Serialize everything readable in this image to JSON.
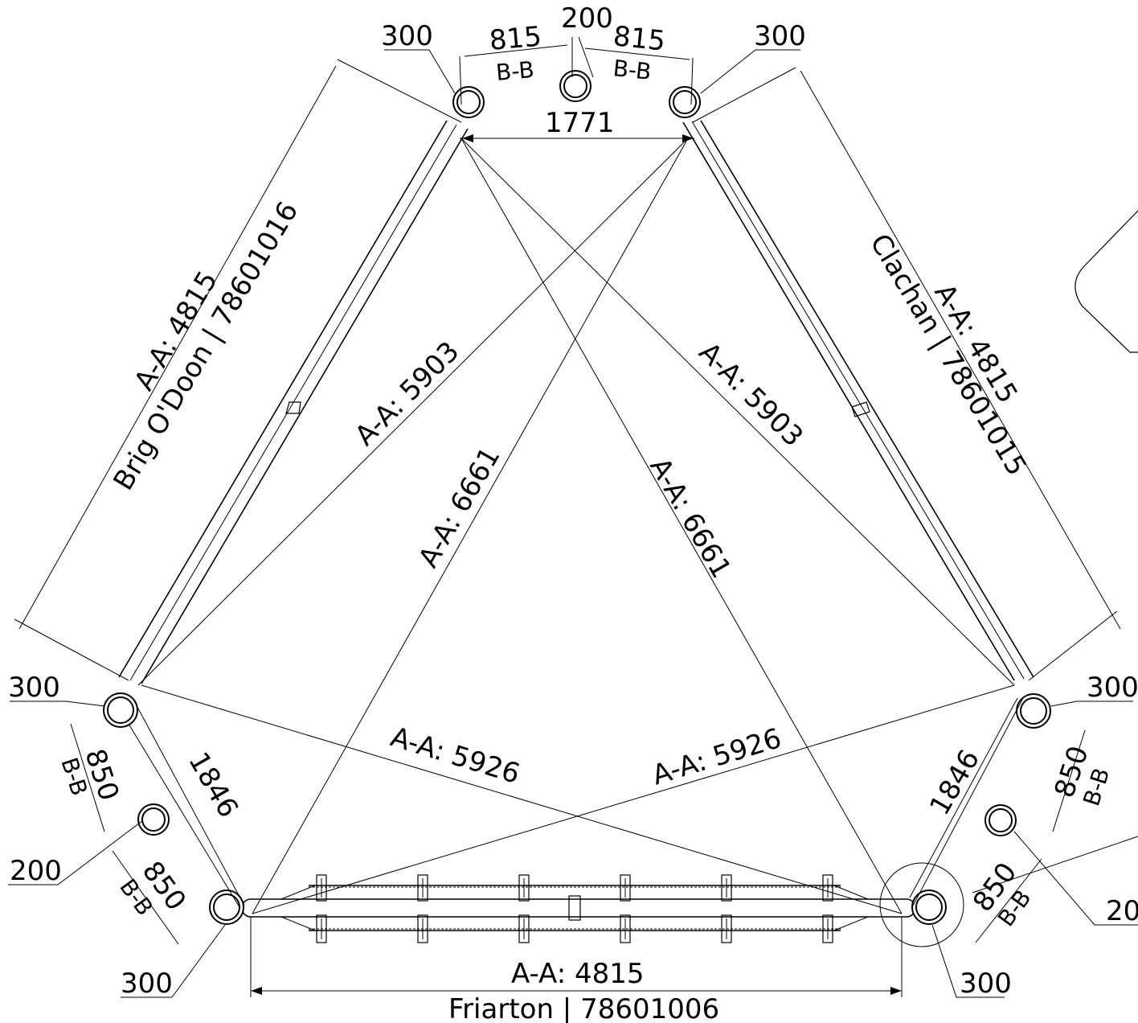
{
  "members": {
    "left": "Brig O'Doon | 78601016",
    "right": "Clachan | 78601015",
    "bottom": "Friarton | 78601006"
  },
  "member_lengths": {
    "left": "A-A: 4815",
    "right": "A-A: 4815",
    "bottom": "A-A: 4815"
  },
  "diagonals": {
    "d5903_left": "A-A: 5903",
    "d5903_right": "A-A: 5903",
    "d6661_left": "A-A: 6661",
    "d6661_right": "A-A: 6661",
    "d5926_left": "A-A: 5926",
    "d5926_right": "A-A: 5926"
  },
  "dims": {
    "top_gap": "1771",
    "side_left": "1846",
    "side_right": "1846",
    "top_center": "200",
    "top_left_offset": "815",
    "top_right_offset": "815",
    "bb": "B-B",
    "offset_850": "850"
  },
  "callouts": {
    "c300": "300",
    "c200": "200",
    "c200_truncated": "20"
  }
}
